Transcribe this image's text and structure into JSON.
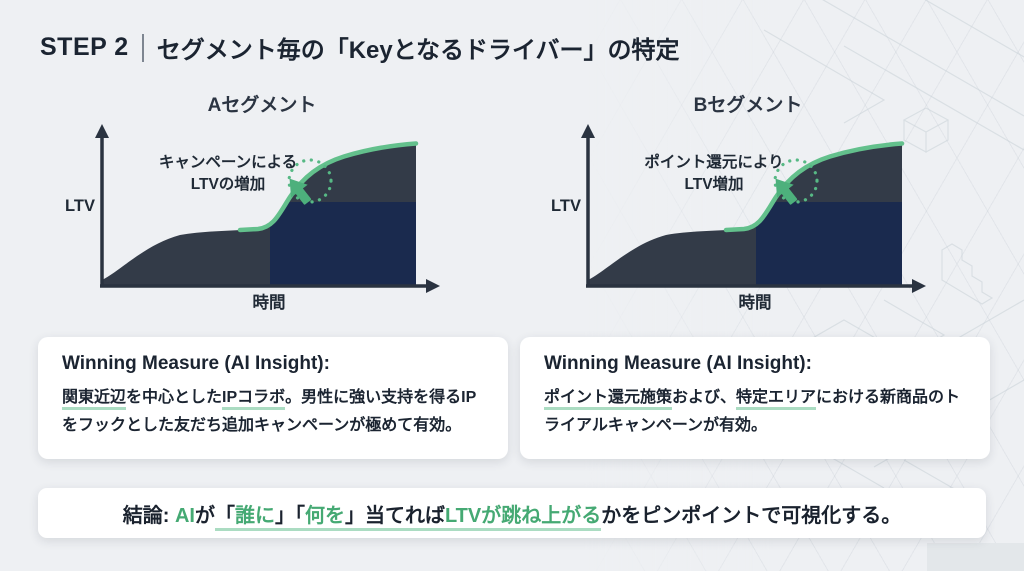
{
  "header": {
    "step": "STEP 2",
    "title": "セグメント毎の「Keyとなるドライバー」の特定"
  },
  "colors": {
    "background": "#eef0f3",
    "ink": "#1b2431",
    "accent_green": "#45a973",
    "underline_green": "#abdcc2",
    "curve_green": "#63c08c",
    "area_charcoal": "#333b48",
    "area_navy": "#1a2a4e"
  },
  "charts": [
    {
      "title": "Aセグメント",
      "y_axis_label": "LTV",
      "x_axis_label": "時間",
      "annotation_line1": "キャンペーンによる",
      "annotation_line2": "LTVの増加"
    },
    {
      "title": "Bセグメント",
      "y_axis_label": "LTV",
      "x_axis_label": "時間",
      "annotation_line1": "ポイント還元により",
      "annotation_line2": "LTV増加"
    }
  ],
  "chart_data": [
    {
      "type": "area",
      "title": "Aセグメント",
      "xlabel": "時間",
      "ylabel": "LTV",
      "x_range_normalized": [
        0,
        1
      ],
      "y_range_normalized": [
        0,
        1
      ],
      "curve_points_normalized": [
        [
          0,
          0.04
        ],
        [
          0.1,
          0.15
        ],
        [
          0.25,
          0.32
        ],
        [
          0.4,
          0.35
        ],
        [
          0.5,
          0.36
        ],
        [
          0.56,
          0.45
        ],
        [
          0.62,
          0.62
        ],
        [
          0.72,
          0.8
        ],
        [
          0.85,
          0.88
        ],
        [
          1,
          0.9
        ]
      ],
      "baseline_plateau_level_normalized": 0.52,
      "intervention_x_normalized": 0.5,
      "annotation": "キャンペーンによる LTVの増加",
      "grid": false,
      "legend": "none"
    },
    {
      "type": "area",
      "title": "Bセグメント",
      "xlabel": "時間",
      "ylabel": "LTV",
      "x_range_normalized": [
        0,
        1
      ],
      "y_range_normalized": [
        0,
        1
      ],
      "curve_points_normalized": [
        [
          0,
          0.04
        ],
        [
          0.1,
          0.15
        ],
        [
          0.25,
          0.32
        ],
        [
          0.4,
          0.35
        ],
        [
          0.5,
          0.36
        ],
        [
          0.56,
          0.45
        ],
        [
          0.62,
          0.62
        ],
        [
          0.72,
          0.8
        ],
        [
          0.85,
          0.88
        ],
        [
          1,
          0.9
        ]
      ],
      "baseline_plateau_level_normalized": 0.52,
      "intervention_x_normalized": 0.5,
      "annotation": "ポイント還元により LTV増加",
      "grid": false,
      "legend": "none"
    }
  ],
  "insight_cards": [
    {
      "heading": "Winning Measure (AI Insight):",
      "segments": [
        {
          "t": "関東近辺",
          "u": 1
        },
        {
          "t": "を中心とした"
        },
        {
          "t": "IPコラボ",
          "u": 1
        },
        {
          "t": "。男性に強い支持を得るIPをフックとした友だち追加キャンペーンが極めて有効。"
        }
      ]
    },
    {
      "heading": "Winning Measure (AI Insight):",
      "segments": [
        {
          "t": "ポイント還元施策",
          "u": 1
        },
        {
          "t": "および、"
        },
        {
          "t": "特定エリア",
          "u": 1
        },
        {
          "t": "における新商品のトライアルキャンペーンが有効。"
        }
      ]
    }
  ],
  "conclusion": {
    "segments": [
      {
        "t": "結論: "
      },
      {
        "t": "AI",
        "g": 1
      },
      {
        "t": "が"
      },
      {
        "t": "「",
        "u": 1
      },
      {
        "t": "誰に",
        "g": 1,
        "u": 1
      },
      {
        "t": "」「",
        "u": 1
      },
      {
        "t": "何を",
        "g": 1,
        "u": 1
      },
      {
        "t": "」当てれば",
        "u": 1
      },
      {
        "t": "LTVが跳ね上がる",
        "g": 1,
        "u": 1
      },
      {
        "t": "かをピンポイントで可視化する。"
      }
    ]
  }
}
